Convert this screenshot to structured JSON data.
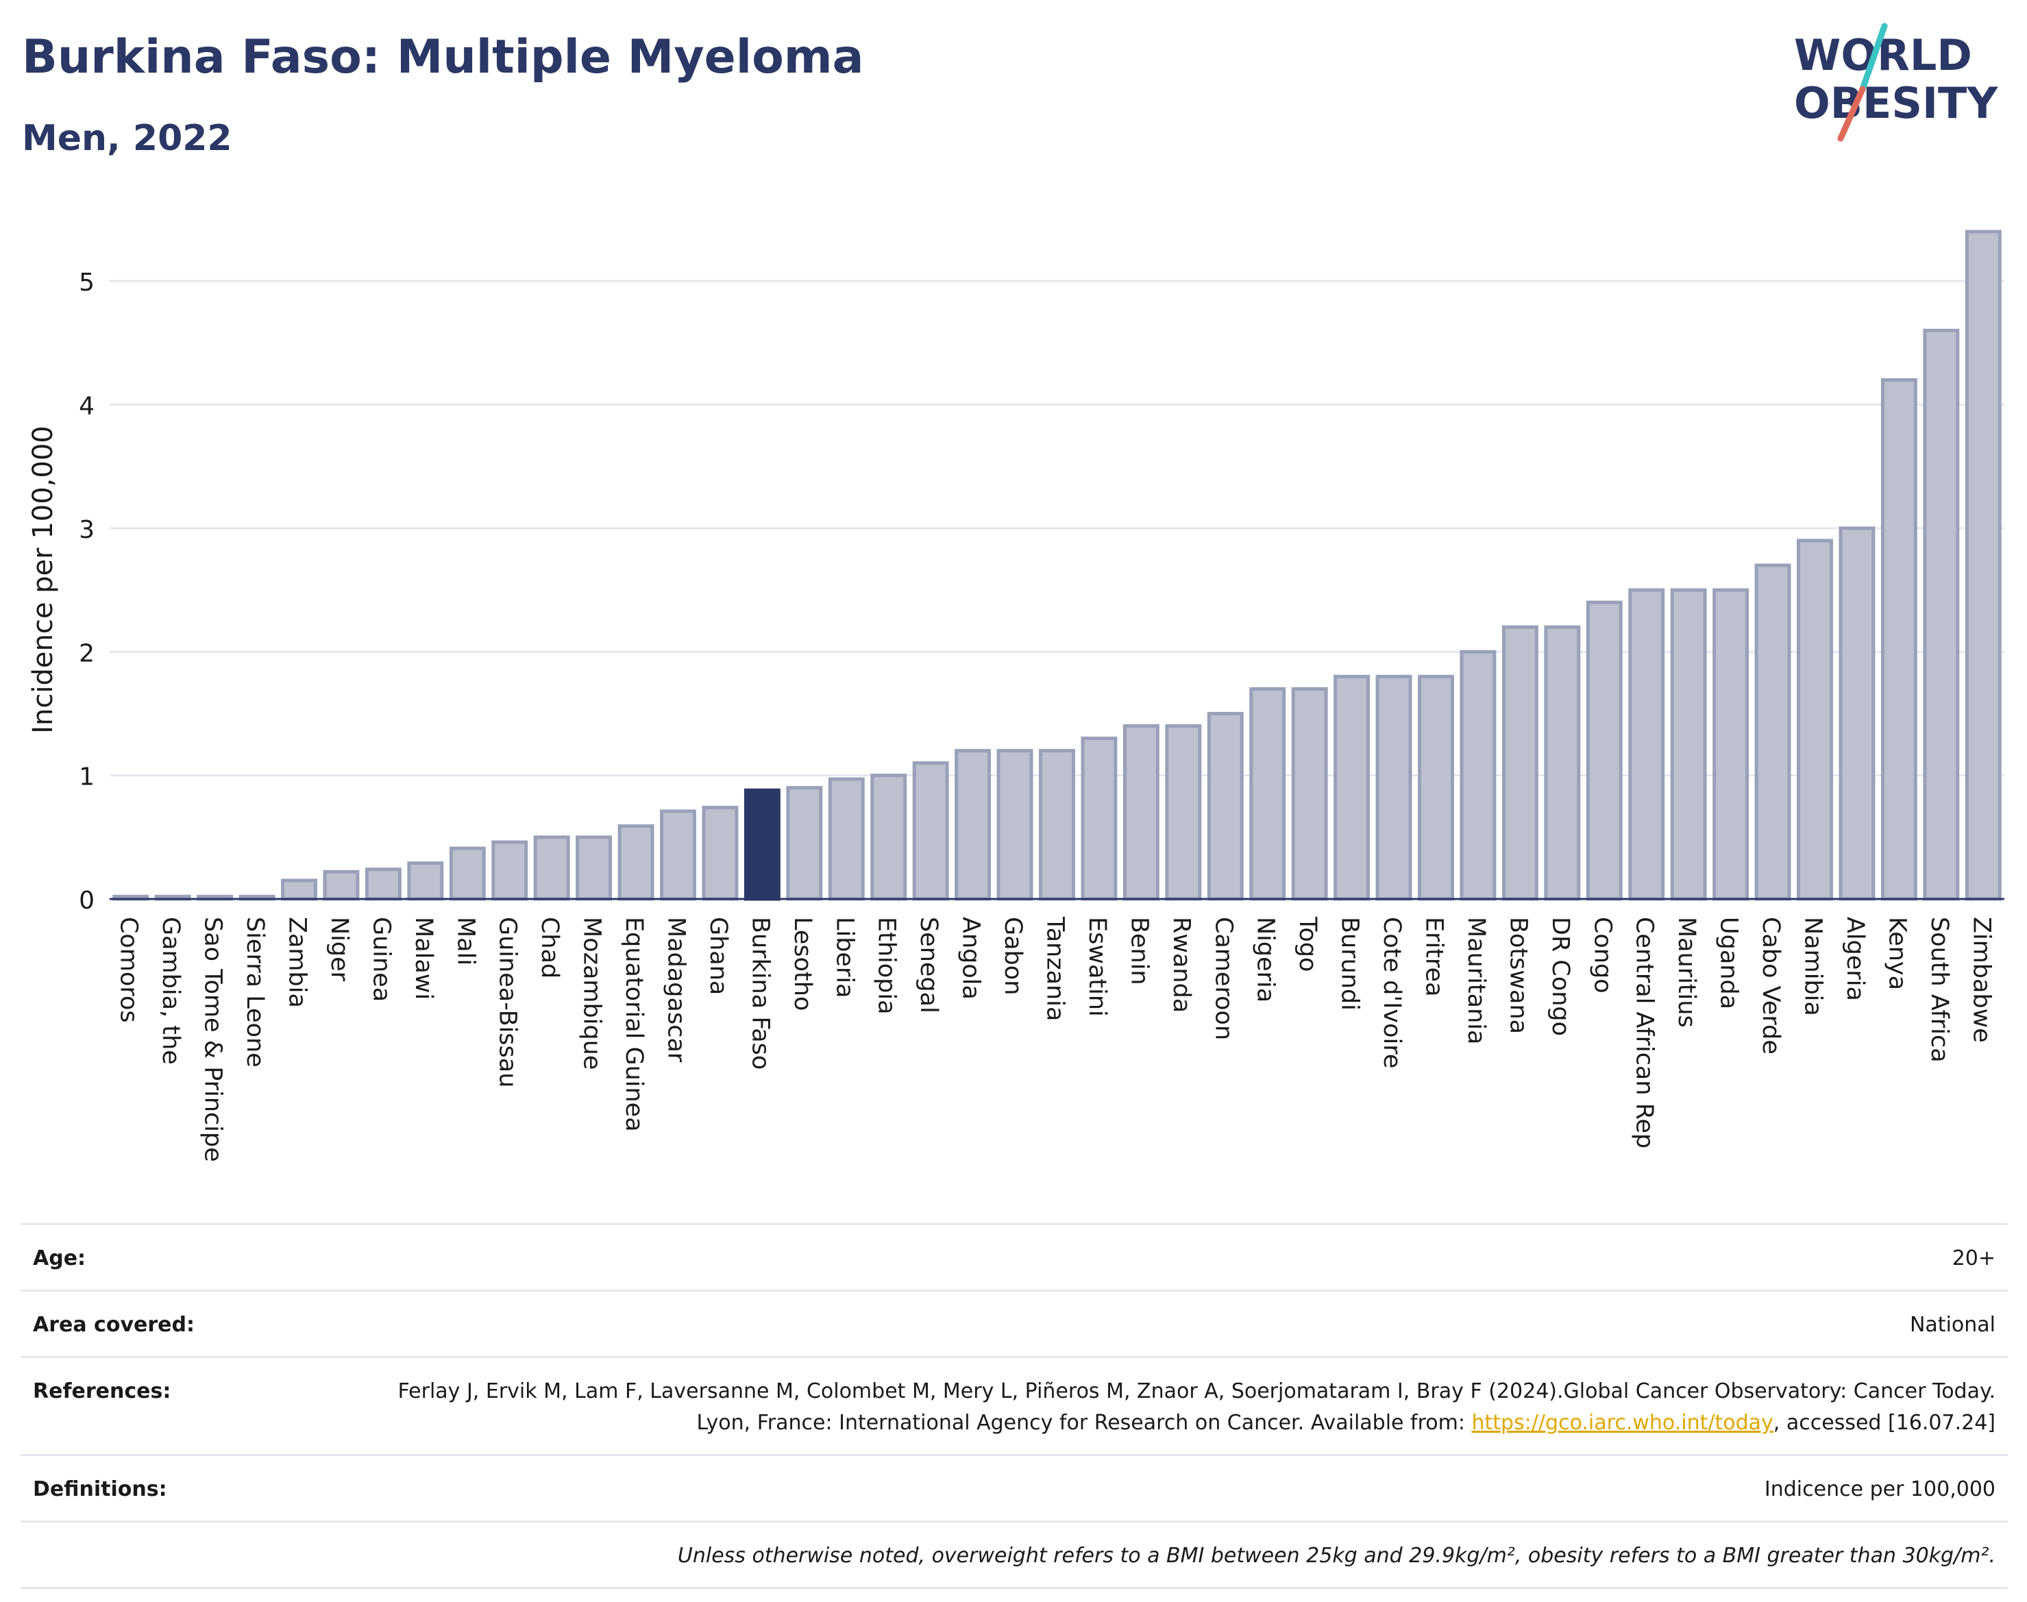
{
  "header": {
    "title": "Burkina Faso: Multiple Myeloma",
    "subtitle": "Men, 2022"
  },
  "logo": {
    "line1": "WORLD",
    "line2": "OBESITY",
    "colors": {
      "text": "#2b3765",
      "slash_teal": "#3cc3c3",
      "slash_red": "#e06a5a"
    }
  },
  "colors": {
    "bar_default": "#bcc0cf",
    "bar_default_stroke": "#9aa0b8",
    "bar_highlight": "#2b3765",
    "grid": "#e6e8ef",
    "axis": "#2b3765"
  },
  "chart_data": {
    "type": "bar",
    "title": "Burkina Faso: Multiple Myeloma",
    "subtitle": "Men, 2022",
    "xlabel": "",
    "ylabel": "Incidence per 100,000",
    "ylim": [
      0,
      5.5
    ],
    "yticks": [
      0,
      1,
      2,
      3,
      4,
      5
    ],
    "grid": true,
    "highlight": "Burkina Faso",
    "categories": [
      "Comoros",
      "Gambia, the",
      "Sao Tome & Principe",
      "Sierra Leone",
      "Zambia",
      "Niger",
      "Guinea",
      "Malawi",
      "Mali",
      "Guinea-Bissau",
      "Chad",
      "Mozambique",
      "Equatorial Guinea",
      "Madagascar",
      "Ghana",
      "Burkina Faso",
      "Lesotho",
      "Liberia",
      "Ethiopia",
      "Senegal",
      "Angola",
      "Gabon",
      "Tanzania",
      "Eswatini",
      "Benin",
      "Rwanda",
      "Cameroon",
      "Nigeria",
      "Togo",
      "Burundi",
      "Cote d'Ivoire",
      "Eritrea",
      "Mauritania",
      "Botswana",
      "DR Congo",
      "Congo",
      "Central African Rep",
      "Mauritius",
      "Uganda",
      "Cabo Verde",
      "Namibia",
      "Algeria",
      "Kenya",
      "South Africa",
      "Zimbabwe"
    ],
    "values": [
      0.02,
      0.02,
      0.02,
      0.02,
      0.15,
      0.22,
      0.24,
      0.29,
      0.41,
      0.46,
      0.5,
      0.5,
      0.59,
      0.71,
      0.74,
      0.88,
      0.9,
      0.97,
      1.0,
      1.1,
      1.2,
      1.2,
      1.2,
      1.3,
      1.4,
      1.4,
      1.5,
      1.7,
      1.7,
      1.8,
      1.8,
      1.8,
      2.0,
      2.2,
      2.2,
      2.4,
      2.5,
      2.5,
      2.5,
      2.7,
      2.9,
      3.0,
      4.2,
      4.6,
      5.4
    ]
  },
  "info": {
    "age_label": "Age:",
    "age_value": "20+",
    "area_label": "Area covered:",
    "area_value": "National",
    "references_label": "References:",
    "references_text": "Ferlay J, Ervik M, Lam F, Laversanne M, Colombet M, Mery L, Piñeros M, Znaor A, Soerjomataram I, Bray F (2024).Global Cancer Observatory: Cancer Today. Lyon, France: International Agency for Research on Cancer. Available from: ",
    "references_link": "https://gco.iarc.who.int/today",
    "references_tail": ", accessed [16.07.24]",
    "definitions_label": "Definitions:",
    "definitions_value": "Indicence per 100,000",
    "note": "Unless otherwise noted, overweight refers to a BMI between 25kg and 29.9kg/m², obesity refers to a BMI greater than 30kg/m²."
  }
}
